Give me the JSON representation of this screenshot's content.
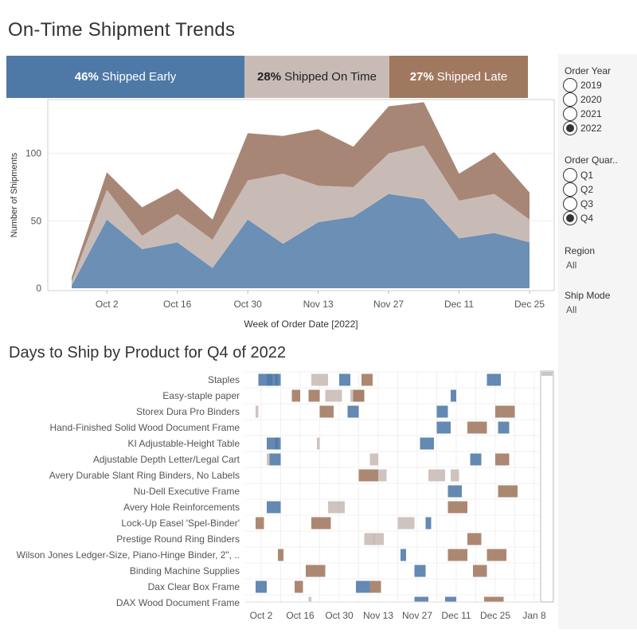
{
  "page": {
    "title": "On-Time Shipment Trends",
    "subtitle": "Days to Ship by Product for Q4 of 2022"
  },
  "summary": [
    {
      "pct": "46%",
      "label": "Shipped Early",
      "share": 46,
      "color": "#4e79a7"
    },
    {
      "pct": "28%",
      "label": "Shipped On Time",
      "share": 28,
      "color": "#c8bbb6"
    },
    {
      "pct": "27%",
      "label": "Shipped Late",
      "share": 27,
      "color": "#a07860"
    }
  ],
  "filters": {
    "order_year": {
      "title": "Order Year",
      "options": [
        "2019",
        "2020",
        "2021",
        "2022"
      ],
      "selected": "2022"
    },
    "order_quarter": {
      "title": "Order Quar..",
      "options": [
        "Q1",
        "Q2",
        "Q3",
        "Q4"
      ],
      "selected": "Q4"
    },
    "region": {
      "title": "Region",
      "value": "All"
    },
    "ship_mode": {
      "title": "Ship Mode",
      "value": "All"
    }
  },
  "chart_data": [
    {
      "type": "area",
      "stacked": true,
      "xlabel": "Week of Order Date [2022]",
      "ylabel": "Number of Shipments",
      "x_ticks": [
        "Oct 2",
        "Oct 16",
        "Oct 30",
        "Nov 13",
        "Nov 27",
        "Dec 11",
        "Dec 25"
      ],
      "y_ticks": [
        0,
        50,
        100
      ],
      "ylim": [
        0,
        140
      ],
      "x": [
        "2022-09-25",
        "2022-10-02",
        "2022-10-09",
        "2022-10-16",
        "2022-10-23",
        "2022-10-30",
        "2022-11-06",
        "2022-11-13",
        "2022-11-20",
        "2022-11-27",
        "2022-12-04",
        "2022-12-11",
        "2022-12-18",
        "2022-12-25"
      ],
      "colors": {
        "Shipped Early": "#6b8fb5",
        "Shipped On Time": "#c8bbb6",
        "Shipped Late": "#a88675"
      },
      "series": [
        {
          "name": "Shipped Early",
          "values": [
            2,
            51,
            29,
            34,
            15,
            51,
            33,
            49,
            53,
            70,
            66,
            37,
            41,
            34
          ]
        },
        {
          "name": "Shipped On Time",
          "values": [
            3,
            22,
            10,
            21,
            21,
            29,
            52,
            27,
            22,
            30,
            40,
            28,
            29,
            17
          ]
        },
        {
          "name": "Shipped Late",
          "values": [
            3,
            13,
            21,
            19,
            15,
            35,
            28,
            42,
            30,
            35,
            32,
            20,
            31,
            20
          ]
        }
      ],
      "grid": true
    },
    {
      "type": "gantt",
      "x_ticks": [
        "Oct 2",
        "Oct 16",
        "Oct 30",
        "Nov 13",
        "Nov 27",
        "Dec 11",
        "Dec 25",
        "Jan 8"
      ],
      "x_start": "2022-09-25",
      "colors": {
        "early": "#4e79a7",
        "ontime": "#c8bbb6",
        "late": "#a07860"
      },
      "categories": [
        "Staples",
        "Easy-staple paper",
        "Storex Dura Pro Binders",
        "Hand-Finished Solid Wood Document Frame",
        "KI Adjustable-Height Table",
        "Adjustable Depth Letter/Legal Cart",
        "Avery Durable Slant Ring Binders, No Labels",
        "Nu-Dell Executive Frame",
        "Avery Hole Reinforcements",
        "Lock-Up Easel 'Spel-Binder'",
        "Prestige Round Ring Binders",
        "Wilson Jones Ledger-Size, Piano-Hinge Binder, 2\", ..",
        "Binding Machine Supplies",
        "Dax Clear Box Frame",
        "DAX Wood Document Frame"
      ],
      "bars": [
        {
          "row": 0,
          "start": "2022-10-01",
          "days": 5,
          "status": "early"
        },
        {
          "row": 0,
          "start": "2022-10-04",
          "days": 5,
          "status": "early"
        },
        {
          "row": 0,
          "start": "2022-10-07",
          "days": 1,
          "status": "early"
        },
        {
          "row": 0,
          "start": "2022-10-20",
          "days": 6,
          "status": "ontime"
        },
        {
          "row": 0,
          "start": "2022-10-30",
          "days": 4,
          "status": "early"
        },
        {
          "row": 0,
          "start": "2022-11-07",
          "days": 4,
          "status": "late"
        },
        {
          "row": 0,
          "start": "2022-12-22",
          "days": 5,
          "status": "early"
        },
        {
          "row": 1,
          "start": "2022-10-13",
          "days": 3,
          "status": "late"
        },
        {
          "row": 1,
          "start": "2022-10-19",
          "days": 4,
          "status": "late"
        },
        {
          "row": 1,
          "start": "2022-10-25",
          "days": 6,
          "status": "ontime"
        },
        {
          "row": 1,
          "start": "2022-11-03",
          "days": 5,
          "status": "ontime"
        },
        {
          "row": 1,
          "start": "2022-11-04",
          "days": 4,
          "status": "late"
        },
        {
          "row": 1,
          "start": "2022-12-09",
          "days": 2,
          "status": "early"
        },
        {
          "row": 2,
          "start": "2022-09-30",
          "days": 1,
          "status": "ontime"
        },
        {
          "row": 2,
          "start": "2022-10-23",
          "days": 5,
          "status": "late"
        },
        {
          "row": 2,
          "start": "2022-11-02",
          "days": 4,
          "status": "early"
        },
        {
          "row": 2,
          "start": "2022-12-04",
          "days": 4,
          "status": "early"
        },
        {
          "row": 2,
          "start": "2022-12-25",
          "days": 7,
          "status": "late"
        },
        {
          "row": 3,
          "start": "2022-12-04",
          "days": 5,
          "status": "early"
        },
        {
          "row": 3,
          "start": "2022-12-15",
          "days": 7,
          "status": "late"
        },
        {
          "row": 3,
          "start": "2022-12-26",
          "days": 4,
          "status": "early"
        },
        {
          "row": 4,
          "start": "2022-10-04",
          "days": 5,
          "status": "early"
        },
        {
          "row": 4,
          "start": "2022-10-07",
          "days": 1,
          "status": "early"
        },
        {
          "row": 4,
          "start": "2022-10-22",
          "days": 1,
          "status": "ontime"
        },
        {
          "row": 4,
          "start": "2022-11-28",
          "days": 5,
          "status": "early"
        },
        {
          "row": 5,
          "start": "2022-10-04",
          "days": 1,
          "status": "ontime"
        },
        {
          "row": 5,
          "start": "2022-10-05",
          "days": 4,
          "status": "early"
        },
        {
          "row": 5,
          "start": "2022-11-10",
          "days": 3,
          "status": "ontime"
        },
        {
          "row": 5,
          "start": "2022-12-16",
          "days": 4,
          "status": "early"
        },
        {
          "row": 5,
          "start": "2022-12-25",
          "days": 5,
          "status": "late"
        },
        {
          "row": 6,
          "start": "2022-11-06",
          "days": 7,
          "status": "late"
        },
        {
          "row": 6,
          "start": "2022-11-13",
          "days": 3,
          "status": "ontime"
        },
        {
          "row": 6,
          "start": "2022-12-01",
          "days": 6,
          "status": "ontime"
        },
        {
          "row": 6,
          "start": "2022-12-09",
          "days": 3,
          "status": "ontime"
        },
        {
          "row": 7,
          "start": "2022-12-08",
          "days": 5,
          "status": "early"
        },
        {
          "row": 7,
          "start": "2022-12-26",
          "days": 7,
          "status": "late"
        },
        {
          "row": 8,
          "start": "2022-10-04",
          "days": 5,
          "status": "early"
        },
        {
          "row": 8,
          "start": "2022-10-26",
          "days": 6,
          "status": "ontime"
        },
        {
          "row": 8,
          "start": "2022-12-08",
          "days": 7,
          "status": "late"
        },
        {
          "row": 9,
          "start": "2022-09-30",
          "days": 3,
          "status": "late"
        },
        {
          "row": 9,
          "start": "2022-10-20",
          "days": 7,
          "status": "late"
        },
        {
          "row": 9,
          "start": "2022-11-20",
          "days": 6,
          "status": "ontime"
        },
        {
          "row": 9,
          "start": "2022-11-30",
          "days": 2,
          "status": "early"
        },
        {
          "row": 10,
          "start": "2022-11-08",
          "days": 4,
          "status": "ontime"
        },
        {
          "row": 10,
          "start": "2022-11-11",
          "days": 4,
          "status": "ontime"
        },
        {
          "row": 10,
          "start": "2022-12-15",
          "days": 5,
          "status": "late"
        },
        {
          "row": 11,
          "start": "2022-10-08",
          "days": 2,
          "status": "late"
        },
        {
          "row": 11,
          "start": "2022-11-21",
          "days": 2,
          "status": "early"
        },
        {
          "row": 11,
          "start": "2022-12-08",
          "days": 7,
          "status": "late"
        },
        {
          "row": 11,
          "start": "2022-12-22",
          "days": 7,
          "status": "late"
        },
        {
          "row": 12,
          "start": "2022-10-18",
          "days": 7,
          "status": "late"
        },
        {
          "row": 12,
          "start": "2022-11-26",
          "days": 4,
          "status": "early"
        },
        {
          "row": 12,
          "start": "2022-12-17",
          "days": 5,
          "status": "late"
        },
        {
          "row": 13,
          "start": "2022-09-30",
          "days": 4,
          "status": "early"
        },
        {
          "row": 13,
          "start": "2022-10-14",
          "days": 3,
          "status": "late"
        },
        {
          "row": 13,
          "start": "2022-11-05",
          "days": 5,
          "status": "early"
        },
        {
          "row": 13,
          "start": "2022-11-10",
          "days": 4,
          "status": "late"
        },
        {
          "row": 14,
          "start": "2022-10-19",
          "days": 1,
          "status": "ontime"
        },
        {
          "row": 14,
          "start": "2022-11-26",
          "days": 5,
          "status": "early"
        },
        {
          "row": 14,
          "start": "2022-12-07",
          "days": 4,
          "status": "early"
        },
        {
          "row": 14,
          "start": "2022-12-21",
          "days": 7,
          "status": "late"
        }
      ]
    }
  ]
}
